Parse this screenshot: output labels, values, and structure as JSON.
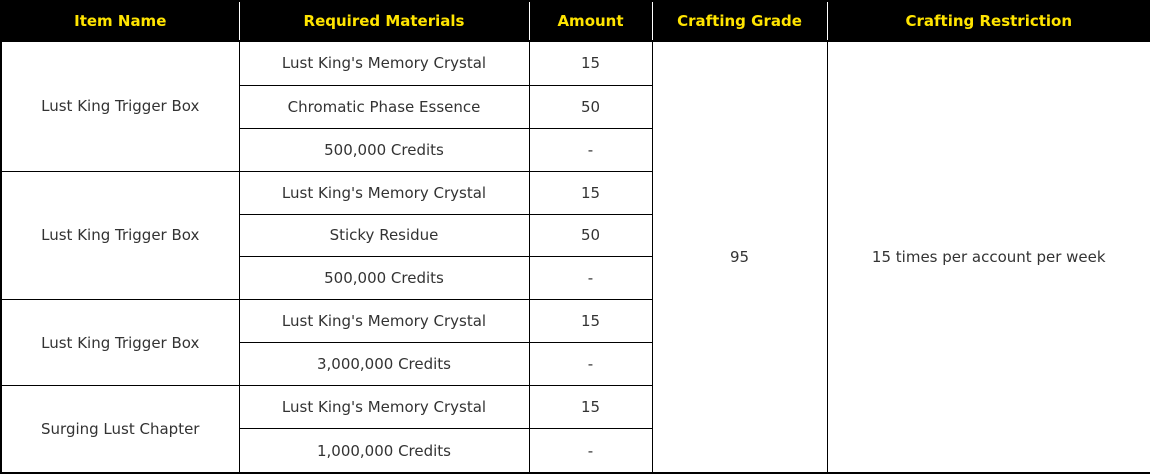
{
  "colors": {
    "header_bg": "#000000",
    "header_text": "#ffe400",
    "border": "#000000",
    "body_text": "#333333"
  },
  "table": {
    "headers": [
      "Item Name",
      "Required Materials",
      "Amount",
      "Crafting Grade",
      "Crafting Restriction"
    ],
    "crafting_grade": "95",
    "crafting_restriction": "15 times per account per week",
    "groups": [
      {
        "item": "Lust King Trigger Box",
        "materials": [
          {
            "name": "Lust King's Memory Crystal",
            "amount": "15"
          },
          {
            "name": "Chromatic Phase Essence",
            "amount": "50"
          },
          {
            "name": "500,000 Credits",
            "amount": "-"
          }
        ]
      },
      {
        "item": "Lust King Trigger Box",
        "materials": [
          {
            "name": "Lust King's Memory Crystal",
            "amount": "15"
          },
          {
            "name": "Sticky Residue",
            "amount": "50"
          },
          {
            "name": "500,000 Credits",
            "amount": "-"
          }
        ]
      },
      {
        "item": "Lust King Trigger Box",
        "materials": [
          {
            "name": "Lust King's Memory Crystal",
            "amount": "15"
          },
          {
            "name": "3,000,000 Credits",
            "amount": "-"
          }
        ]
      },
      {
        "item": "Surging Lust Chapter",
        "materials": [
          {
            "name": "Lust King's Memory Crystal",
            "amount": "15"
          },
          {
            "name": "1,000,000 Credits",
            "amount": "-"
          }
        ]
      }
    ]
  }
}
